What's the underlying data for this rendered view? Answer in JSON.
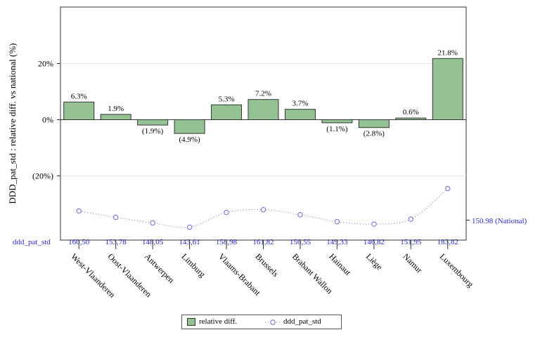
{
  "chart_data": {
    "type": "bar",
    "categories": [
      "West-Vlaanderen",
      "Oost-Vlaanderen",
      "Antwerpen",
      "Limburg",
      "Vlaams-Brabant",
      "Brussels",
      "Brabant Wallon",
      "Hainaut",
      "Liège",
      "Namur",
      "Luxembourg"
    ],
    "series": [
      {
        "name": "relative diff.",
        "type": "bar",
        "values": [
          6.3,
          1.9,
          -1.9,
          -4.9,
          5.3,
          7.2,
          3.7,
          -1.1,
          -2.8,
          0.6,
          21.8
        ],
        "labels": [
          "6.3%",
          "1.9%",
          "(1.9%)",
          "(4.9%)",
          "5.3%",
          "7.2%",
          "3.7%",
          "(1.1%)",
          "(2.8%)",
          "0.6%",
          "21.8%"
        ]
      },
      {
        "name": "ddd_pat_std",
        "type": "line",
        "values": [
          160.5,
          153.78,
          148.05,
          143.61,
          158.98,
          161.82,
          156.55,
          149.33,
          146.82,
          151.95,
          183.82
        ],
        "labels": [
          "160,50",
          "153,78",
          "148,05",
          "143,61",
          "158,98",
          "161,82",
          "156,55",
          "149,33",
          "146,82",
          "151,95",
          "183,82"
        ]
      }
    ],
    "ylabel": "DDD_pat_std : relative diff. vs national (%)",
    "yticks": [
      {
        "v": 20,
        "label": "20%"
      },
      {
        "v": 0,
        "label": "0%"
      },
      {
        "v": -20,
        "label": "(20%)"
      }
    ],
    "ylim": [
      -44,
      40
    ],
    "secondary_reference": {
      "value": 150.98,
      "label": "150.98 (National)"
    },
    "table_row_label": "ddd_pat_std",
    "colors": {
      "bar": "#95c295",
      "line": "#6b6bd8",
      "table_text": "#2a2acc",
      "grid": "#e4e4e4"
    },
    "legend_position": "bottom"
  }
}
